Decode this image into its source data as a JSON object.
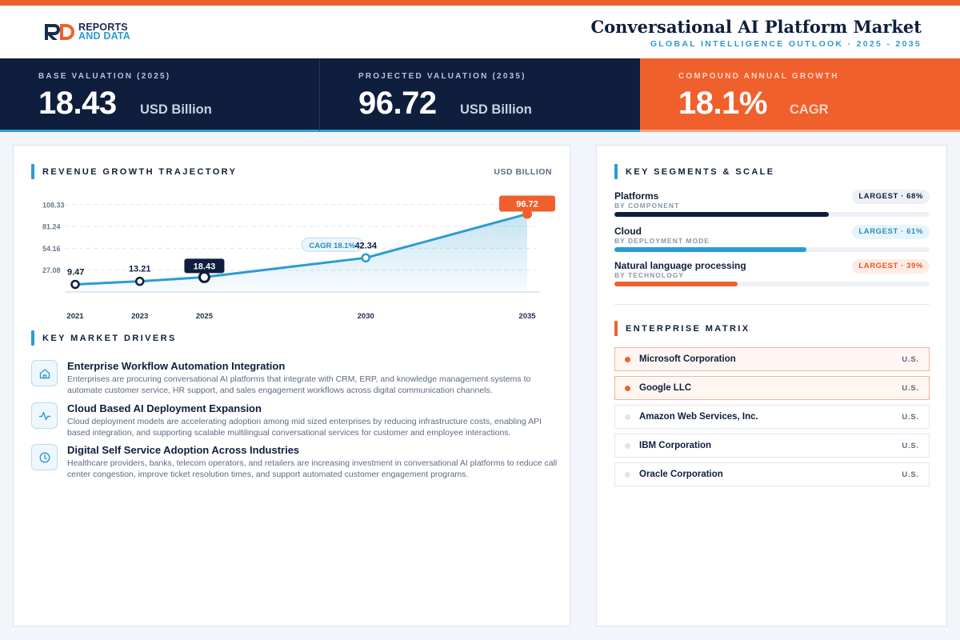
{
  "brand": {
    "line1": "REPORTS",
    "line2": "AND DATA",
    "color_dark": "#1b2b4f",
    "color_orange": "#f0602c"
  },
  "header": {
    "title": "Conversational AI Platform Market",
    "subtitle": "GLOBAL INTELLIGENCE OUTLOOK · 2025 - 2035"
  },
  "kpis": [
    {
      "label": "BASE VALUATION (2025)",
      "value": "18.43",
      "unit": "USD Billion"
    },
    {
      "label": "PROJECTED VALUATION (2035)",
      "value": "96.72",
      "unit": "USD Billion"
    },
    {
      "label": "COMPOUND ANNUAL GROWTH",
      "value": "18.1%",
      "unit": "CAGR"
    }
  ],
  "revenue_section": {
    "title": "REVENUE GROWTH TRAJECTORY",
    "unit": "USD BILLION"
  },
  "chart_data": {
    "type": "area",
    "x": [
      2021,
      2023,
      2025,
      2030,
      2035
    ],
    "categories": [
      "2021",
      "2023",
      "2025",
      "2030",
      "2035"
    ],
    "values": [
      9.47,
      13.21,
      18.43,
      42.34,
      96.72
    ],
    "value_labels": [
      "9.47",
      "13.21",
      "18.43",
      "42.34",
      "96.72"
    ],
    "y_ticks": [
      27.08,
      54.16,
      81.24,
      108.33
    ],
    "y_tick_labels": [
      "27.08",
      "54.16",
      "81.24",
      "108.33"
    ],
    "ylim": [
      0,
      120
    ],
    "grid": true,
    "annotation": {
      "label": "CAGR 18.1%",
      "near_x": 2030
    },
    "highlight": {
      "base_index": 2,
      "projected_index": 4
    },
    "colors": {
      "line": "#2d9bd1",
      "base": "#0f1e3d",
      "projected": "#f0602c"
    }
  },
  "drivers_section": {
    "title": "KEY MARKET DRIVERS"
  },
  "drivers": [
    {
      "icon": "home-icon",
      "title": "Enterprise Workflow Automation Integration",
      "description": "Enterprises are procuring conversational AI platforms that integrate with CRM, ERP, and knowledge management systems to automate customer service, HR support, and sales engagement workflows across digital communication channels."
    },
    {
      "icon": "pulse-icon",
      "title": "Cloud Based AI Deployment Expansion",
      "description": "Cloud deployment models are accelerating adoption among mid sized enterprises by reducing infrastructure costs, enabling API based integration, and supporting scalable multilingual conversational services for customer and employee interactions."
    },
    {
      "icon": "clock-icon",
      "title": "Digital Self Service Adoption Across Industries",
      "description": "Healthcare providers, banks, telecom operators, and retailers are increasing investment in conversational AI platforms to reduce call center congestion, improve ticket resolution times, and support automated customer engagement programs."
    }
  ],
  "segments_section": {
    "title": "KEY SEGMENTS & SCALE"
  },
  "segments": [
    {
      "name": "Platforms",
      "category": "BY COMPONENT",
      "badge": "LARGEST · 68%",
      "share": 0.68,
      "color": "#0f1e3d",
      "badge_bg": "#edf0f5",
      "badge_color": "#0f1e3d"
    },
    {
      "name": "Cloud",
      "category": "BY DEPLOYMENT MODE",
      "badge": "LARGEST · 61%",
      "share": 0.61,
      "color": "#2d9bd1",
      "badge_bg": "#e6f4fb",
      "badge_color": "#2d8bbd"
    },
    {
      "name": "Natural language processing",
      "category": "BY TECHNOLOGY",
      "badge": "LARGEST · 39%",
      "share": 0.39,
      "color": "#f0602c",
      "badge_bg": "#fdece5",
      "badge_color": "#e2582a"
    }
  ],
  "enterprise_section": {
    "title": "ENTERPRISE MATRIX"
  },
  "enterprises": [
    {
      "name": "Microsoft Corporation",
      "country": "U.S.",
      "highlighted": true
    },
    {
      "name": "Google LLC",
      "country": "U.S.",
      "highlighted": true
    },
    {
      "name": "Amazon Web Services, Inc.",
      "country": "U.S.",
      "highlighted": false
    },
    {
      "name": "IBM Corporation",
      "country": "U.S.",
      "highlighted": false
    },
    {
      "name": "Oracle Corporation",
      "country": "U.S.",
      "highlighted": false
    }
  ]
}
